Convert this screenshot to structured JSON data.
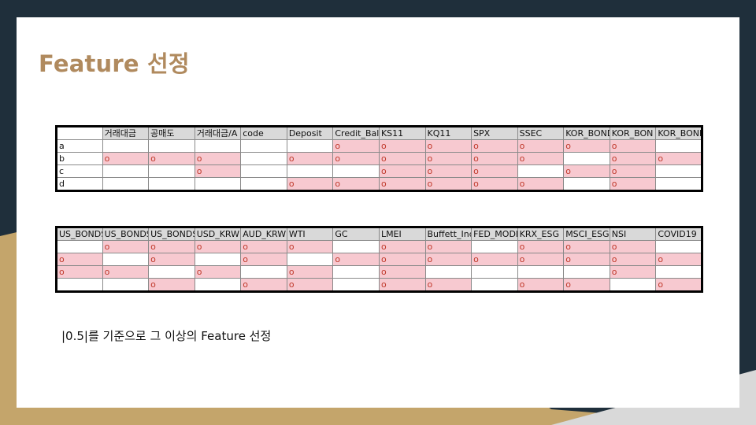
{
  "title": "Feature 선정",
  "note": "|0.5|를 기준으로 그 이상의 Feature 선정",
  "colors": {
    "accent": "#b08a5e",
    "dark_bg": "#1f2f3b",
    "gold_bg": "#c4a56b",
    "marked_fill": "#f7c9d0",
    "header_fill": "#d9d9d9"
  },
  "table1": {
    "headers": [
      "",
      "거래대금",
      "공매도",
      "거래대금/A",
      "code",
      "Deposit",
      "Credit_Bala",
      "KS11",
      "KQ11",
      "SPX",
      "SSEC",
      "KOR_BOND",
      "KOR_BON",
      "KOR_BONDS_"
    ],
    "rows": [
      [
        "a",
        "",
        "",
        "",
        "",
        "",
        "o",
        "o",
        "o",
        "o",
        "o",
        "o",
        "o",
        ""
      ],
      [
        "b",
        "o",
        "o",
        "o",
        "",
        "o",
        "o",
        "o",
        "o",
        "o",
        "o",
        "",
        "o",
        "o"
      ],
      [
        "c",
        "",
        "",
        "o",
        "",
        "",
        "",
        "o",
        "o",
        "o",
        "",
        "o",
        "o",
        ""
      ],
      [
        "d",
        "",
        "",
        "",
        "",
        "o",
        "o",
        "o",
        "o",
        "o",
        "o",
        "",
        "o",
        ""
      ]
    ]
  },
  "table2": {
    "headers": [
      "US_BONDS",
      "US_BONDS",
      "US_BONDS",
      "USD_KRW",
      "AUD_KRW",
      "WTI",
      "GC",
      "LMEI",
      "Buffett_Ind",
      "FED_MODE",
      "KRX_ESG",
      "MSCI_ESG",
      "NSI",
      "COVID19"
    ],
    "rows": [
      [
        "",
        "o",
        "o",
        "o",
        "o",
        "o",
        "",
        "o",
        "o",
        "",
        "o",
        "o",
        "o",
        ""
      ],
      [
        "o",
        "",
        "o",
        "",
        "o",
        "",
        "o",
        "o",
        "o",
        "o",
        "o",
        "o",
        "o",
        "o"
      ],
      [
        "o",
        "o",
        "",
        "o",
        "",
        "o",
        "",
        "o",
        "",
        "",
        "",
        "",
        "o",
        ""
      ],
      [
        "",
        "",
        "o",
        "",
        "o",
        "o",
        "",
        "o",
        "o",
        "",
        "o",
        "o",
        "",
        "o"
      ]
    ]
  }
}
